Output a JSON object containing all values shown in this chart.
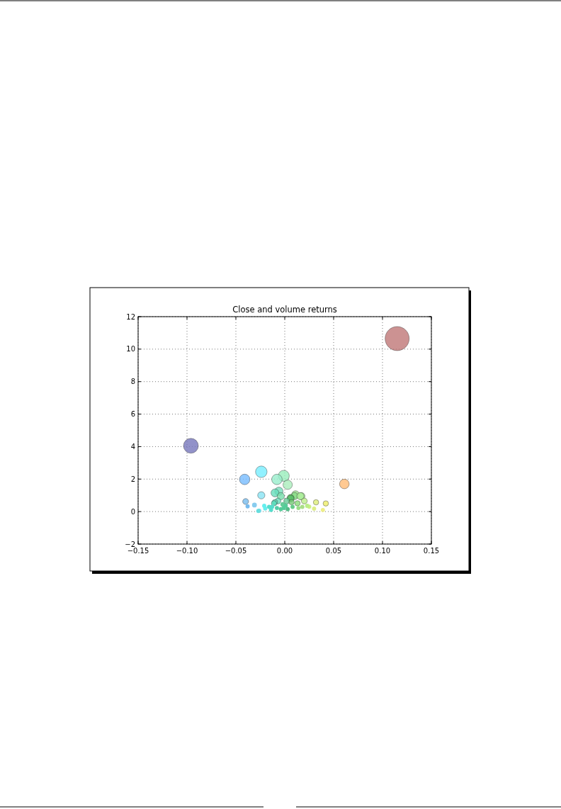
{
  "chart_data": {
    "type": "bubble",
    "title": "Close and volume returns",
    "xlim": [
      -0.15,
      0.15
    ],
    "ylim": [
      -2,
      12
    ],
    "xticks": [
      {
        "value": -0.15,
        "label": "−0.15"
      },
      {
        "value": -0.1,
        "label": "−0.10"
      },
      {
        "value": -0.05,
        "label": "−0.05"
      },
      {
        "value": 0,
        "label": "0.00"
      },
      {
        "value": 0.05,
        "label": "0.05"
      },
      {
        "value": 0.1,
        "label": "0.10"
      },
      {
        "value": 0.15,
        "label": "0.15"
      }
    ],
    "yticks": [
      {
        "value": -2,
        "label": "−2"
      },
      0,
      2,
      4,
      6,
      8,
      10,
      12
    ],
    "grid": true,
    "marker": "circle",
    "series": [
      {
        "x": [
          0.115,
          -0.096,
          -0.041,
          -0.024,
          -0.008,
          -0.001,
          0.003,
          0.061,
          -0.024,
          -0.04,
          -0.038,
          -0.031,
          -0.026,
          0.032,
          0.042,
          0.03,
          0.039,
          -0.01,
          -0.006,
          0.011,
          0.017,
          0.006,
          0.02,
          0.023,
          0.025,
          -0.021,
          -0.02,
          -0.013,
          -0.01,
          -0.007,
          -0.004,
          0.001,
          0.006,
          0.01,
          0.016,
          0.013,
          0.008,
          0.003,
          -0.004,
          -0.008,
          -0.014,
          -0.002,
          0.014,
          0.018,
          0.023,
          -0.027,
          0.007,
          0.002,
          -0.001,
          -0.016,
          -0.011
        ],
        "values": [
          10.65,
          4.05,
          1.98,
          2.45,
          1.98,
          2.2,
          1.65,
          1.7,
          1.0,
          0.62,
          0.32,
          0.4,
          0.05,
          0.57,
          0.5,
          0.18,
          0.1,
          1.15,
          1.25,
          1.05,
          0.95,
          0.85,
          0.65,
          0.35,
          0.3,
          0.36,
          0.19,
          0.29,
          0.58,
          0.65,
          0.95,
          0.36,
          0.8,
          0.95,
          0.95,
          0.51,
          0.29,
          0.15,
          0.15,
          0.22,
          0.1,
          0.44,
          0.22,
          0.29,
          0.36,
          0.04,
          0.58,
          0.65,
          0.22,
          0.29,
          0.51
        ],
        "sizes": [
          1,
          0.38,
          0.19,
          0.23,
          0.19,
          0.21,
          0.15,
          0.16,
          0.09,
          0.06,
          0.03,
          0.04,
          0.03,
          0.05,
          0.05,
          0.03,
          0.03,
          0.11,
          0.12,
          0.1,
          0.09,
          0.08,
          0.06,
          0.03,
          0.03,
          0.03,
          0.03,
          0.03,
          0.05,
          0.06,
          0.09,
          0.03,
          0.08,
          0.09,
          0.09,
          0.05,
          0.03,
          0.03,
          0.03,
          0.03,
          0.03,
          0.04,
          0.03,
          0.03,
          0.03,
          0.03,
          0.05,
          0.06,
          0.03,
          0.03,
          0.05
        ],
        "colors": [
          "#bf7777",
          "#7777bb",
          "#77bbff",
          "#77eeff",
          "#99eecc",
          "#99eebb",
          "#aaeebb",
          "#ffbb77",
          "#88e4f4",
          "#77bbee",
          "#77bbee",
          "#88ccee",
          "#88ddee",
          "#ddee77",
          "#eeee66",
          "#ddee88",
          "#eeee88",
          "#66ddbb",
          "#77ddbb",
          "#99dd88",
          "#aaee99",
          "#66cc66",
          "#bbee88",
          "#ccee88",
          "#ccee88",
          "#66eeee",
          "#66eeee",
          "#55ddcc",
          "#66ddbb",
          "#66ddbb",
          "#77ddaa",
          "#55cc99",
          "#55bb66",
          "#88dd88",
          "#aaee99",
          "#88dd77",
          "#66cc88",
          "#55bb88",
          "#55cc99",
          "#55ccaa",
          "#55ddcc",
          "#66cc99",
          "#99dd88",
          "#aadd88",
          "#bbee88",
          "#66dddd",
          "#77cc77",
          "#66cc99",
          "#55cc99",
          "#55ddcc",
          "#55ddbb"
        ]
      }
    ]
  }
}
